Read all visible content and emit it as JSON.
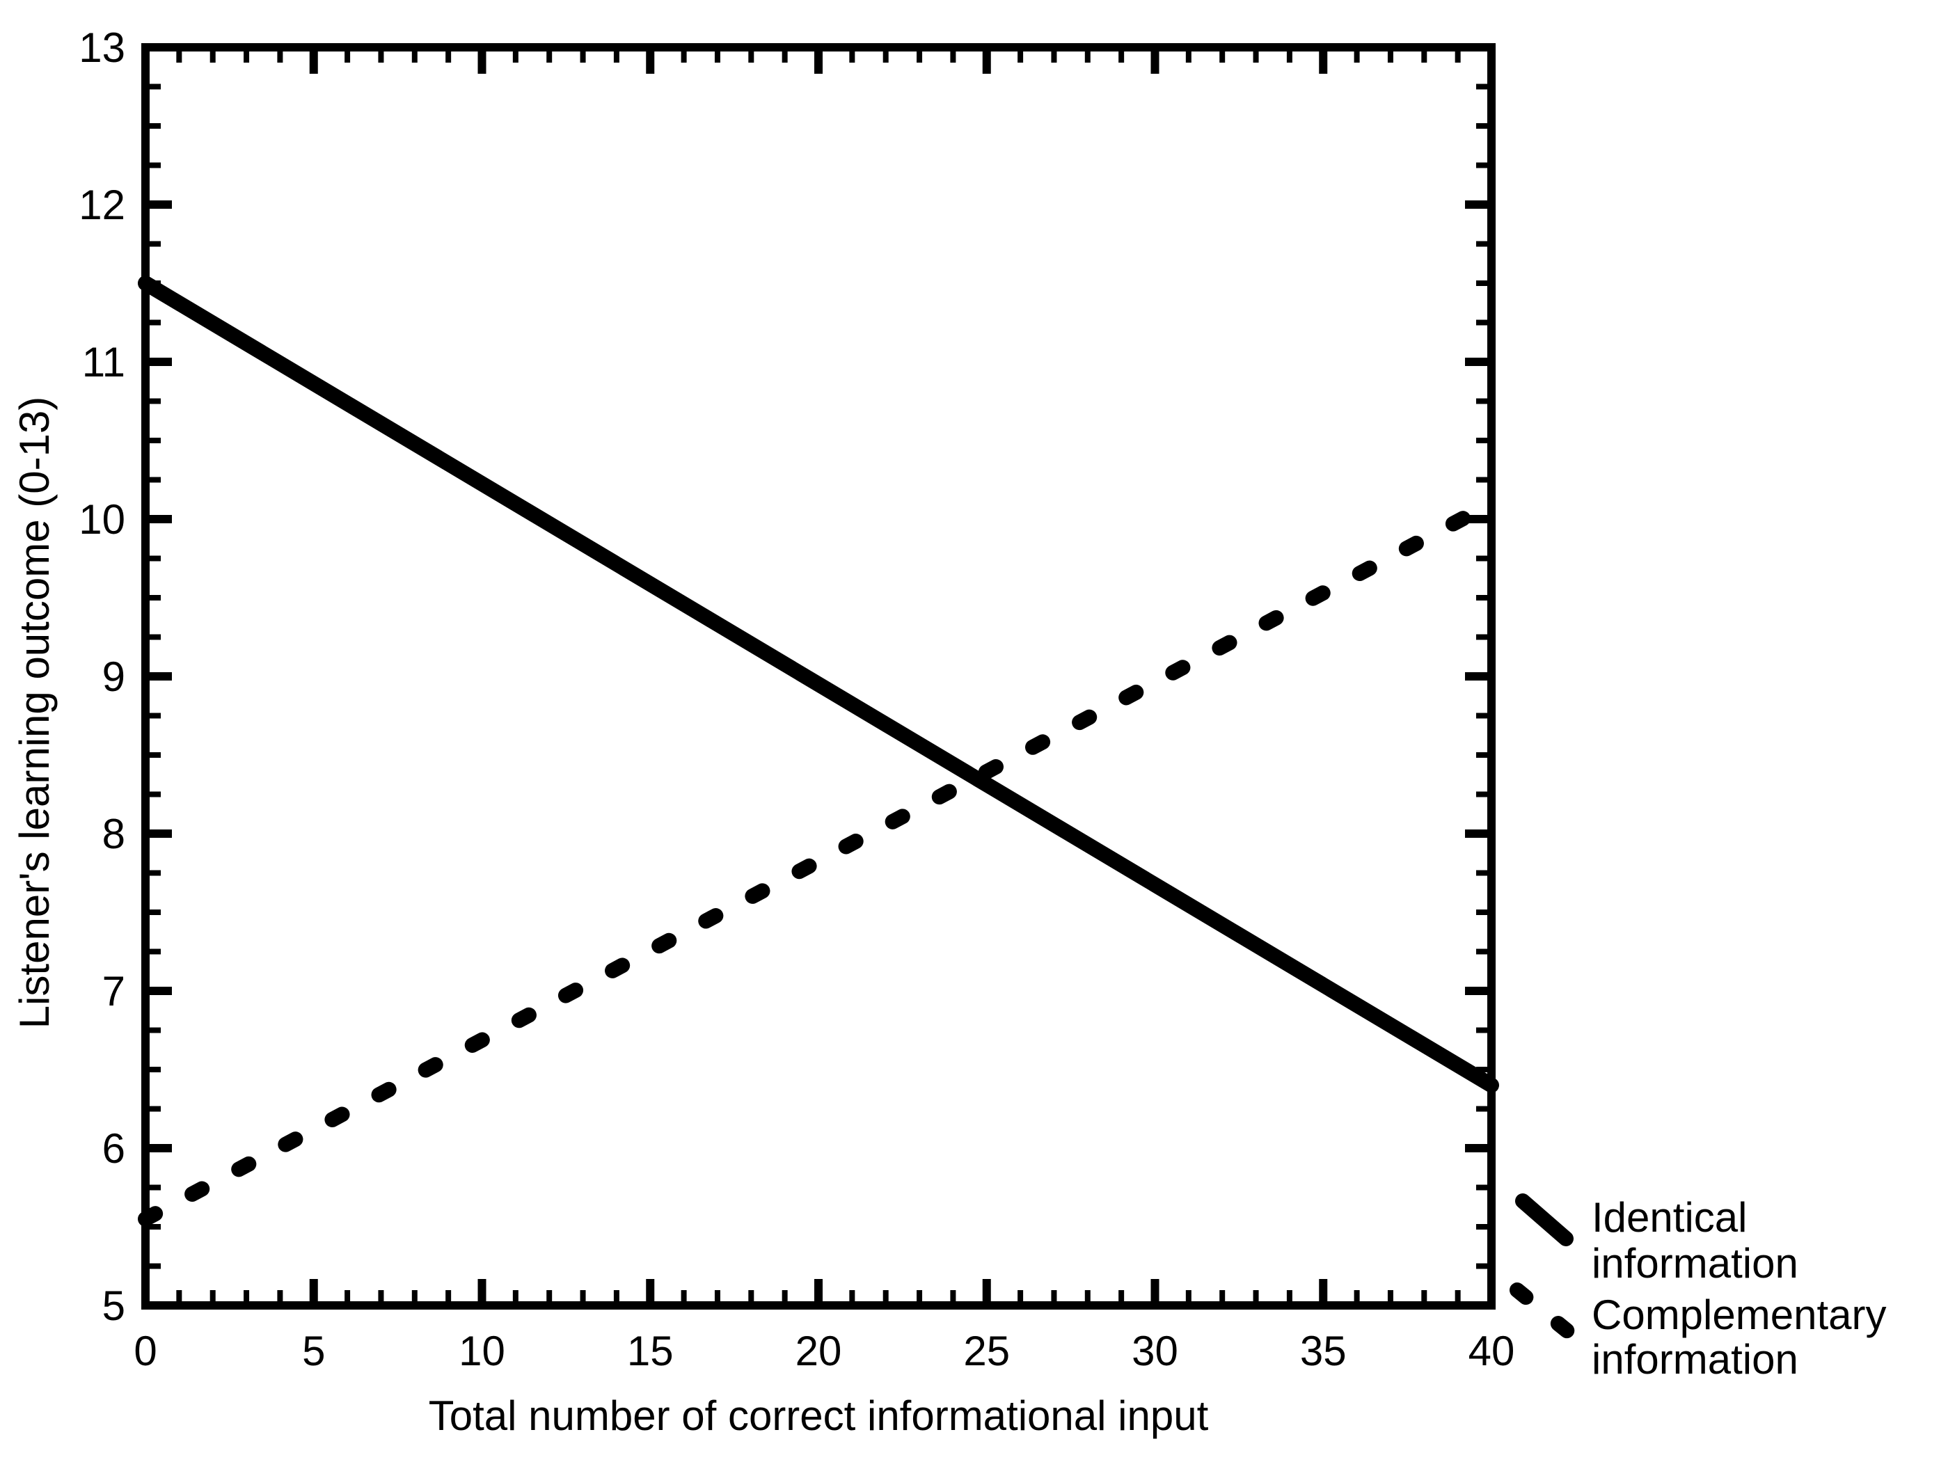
{
  "figure": {
    "background_color": "#ffffff",
    "ink_color": "#000000"
  },
  "chart_data": {
    "type": "line",
    "title": "",
    "xlabel": "Total number of correct informational input",
    "ylabel": "Listener's learning outcome (0-13)",
    "xlim": [
      0,
      40
    ],
    "ylim": [
      5,
      13
    ],
    "grid": false,
    "x_major_ticks": [
      0,
      5,
      10,
      15,
      20,
      25,
      30,
      35,
      40
    ],
    "x_tick_labels": [
      "0",
      "5",
      "10",
      "15",
      "20",
      "25",
      "30",
      "35",
      "40"
    ],
    "x_minor_step": 1,
    "y_major_ticks": [
      5,
      6,
      7,
      8,
      9,
      10,
      11,
      12,
      13
    ],
    "y_tick_labels": [
      "5",
      "6",
      "7",
      "8",
      "9",
      "10",
      "11",
      "12",
      "13"
    ],
    "y_minor_step": 0.25,
    "series": [
      {
        "name": "Identical information",
        "style": "solid",
        "x": [
          0,
          40
        ],
        "y": [
          11.5,
          6.4
        ]
      },
      {
        "name": "Complementary information",
        "style": "dashed",
        "x": [
          0,
          40
        ],
        "y": [
          5.55,
          10.1
        ]
      }
    ],
    "legend_position": "outside-bottom-right"
  },
  "legend": {
    "items": [
      {
        "line1": "Identical",
        "line2": "information",
        "style": "solid"
      },
      {
        "line1": "Complementary",
        "line2": "information",
        "style": "dashed"
      }
    ]
  }
}
